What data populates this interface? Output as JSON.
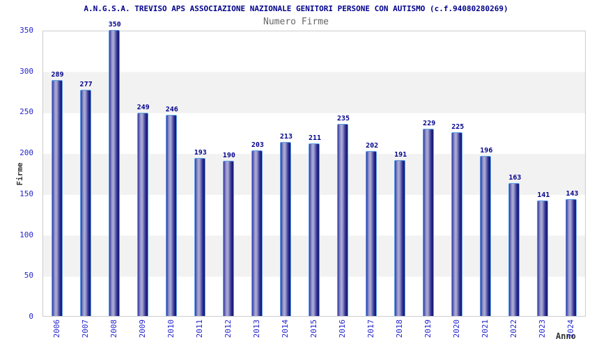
{
  "chart_data": {
    "type": "bar",
    "title": "A.N.G.S.A. TREVISO APS ASSOCIAZIONE NAZIONALE GENITORI PERSONE CON AUTISMO (c.f.94080280269)",
    "subtitle": "Numero Firme",
    "xlabel": "Anno",
    "ylabel": "Firme",
    "categories": [
      "2006",
      "2007",
      "2008",
      "2009",
      "2010",
      "2011",
      "2012",
      "2013",
      "2014",
      "2015",
      "2016",
      "2017",
      "2018",
      "2019",
      "2020",
      "2021",
      "2022",
      "2023",
      "2024"
    ],
    "values": [
      289,
      277,
      350,
      249,
      246,
      193,
      190,
      203,
      213,
      211,
      235,
      202,
      191,
      229,
      225,
      196,
      163,
      141,
      143
    ],
    "ylim": [
      0,
      350
    ],
    "yticks": [
      0,
      50,
      100,
      150,
      200,
      250,
      300,
      350
    ],
    "grid": "horizontal-alternating-bands",
    "legend": "none",
    "colors": {
      "title_text": "#00008b",
      "subtitle_text": "#666666",
      "axis_tick_text": "#2424cc",
      "axis_title_text": "#333333",
      "value_label_text": "#00008b",
      "bar_border": "#5aa2e8",
      "bar_dark": "#14146d",
      "bar_mid": "#3b3ba5",
      "bar_highlight": "#adadd8",
      "plot_border": "#cccccc",
      "band_gray": "#f2f2f2",
      "band_white": "#ffffff"
    }
  }
}
